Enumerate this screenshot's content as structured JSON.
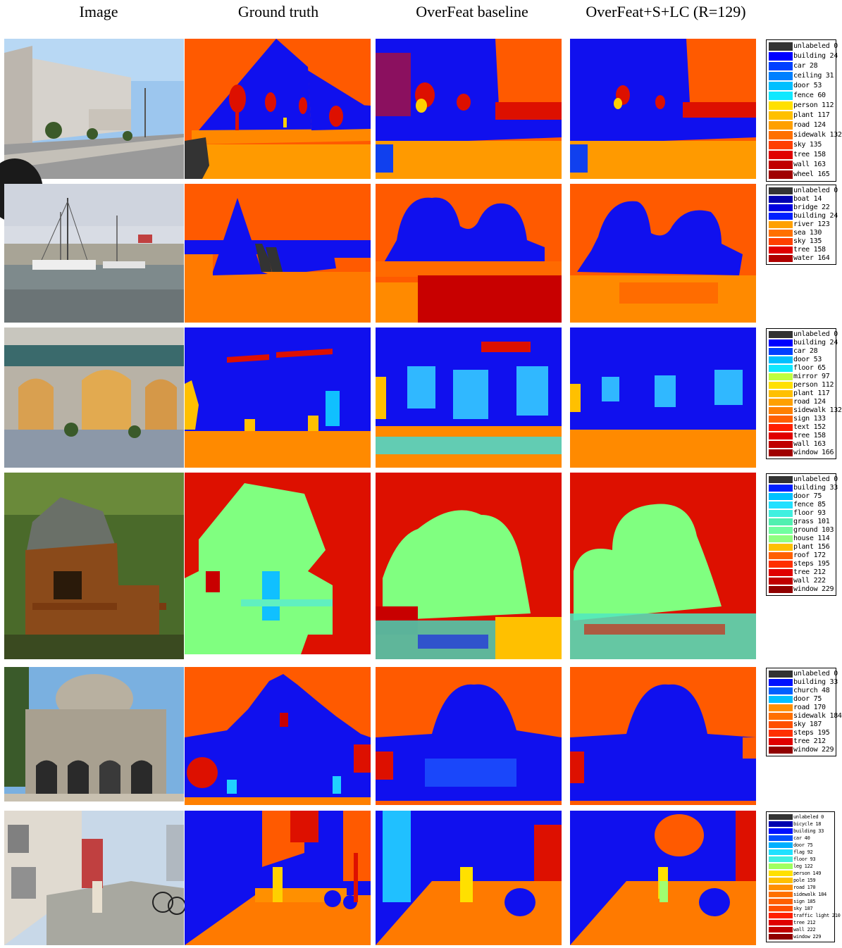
{
  "column_headers": [
    "Image",
    "Ground truth",
    "OverFeat baseline",
    "OverFeat+S+LC (R=129)"
  ],
  "colors": {
    "sky_orange": "#ff5a00",
    "building_blue": "#1010ee",
    "road_orange": "#ff9a00",
    "tree_red": "#dd1000",
    "house_green": "#80ff80",
    "door_cyan": "#10c0ff"
  },
  "legends": [
    {
      "entries": [
        {
          "label": "unlabeled 0",
          "color": "#333333"
        },
        {
          "label": "building 24",
          "color": "#0000ff"
        },
        {
          "label": "car 28",
          "color": "#0040ff"
        },
        {
          "label": "ceiling 31",
          "color": "#0080ff"
        },
        {
          "label": "door 53",
          "color": "#00bfff"
        },
        {
          "label": "fence 60",
          "color": "#10e8ff"
        },
        {
          "label": "person 112",
          "color": "#ffe000"
        },
        {
          "label": "plant 117",
          "color": "#ffc000"
        },
        {
          "label": "road 124",
          "color": "#ffa000"
        },
        {
          "label": "sidewalk 132",
          "color": "#ff7000"
        },
        {
          "label": "sky 135",
          "color": "#ff4000"
        },
        {
          "label": "tree 158",
          "color": "#e00000"
        },
        {
          "label": "wall 163",
          "color": "#c00000"
        },
        {
          "label": "wheel 165",
          "color": "#a00000"
        }
      ]
    },
    {
      "entries": [
        {
          "label": "unlabeled 0",
          "color": "#333333"
        },
        {
          "label": "boat 14",
          "color": "#0000b0"
        },
        {
          "label": "bridge 22",
          "color": "#0000e0"
        },
        {
          "label": "building 24",
          "color": "#0020ff"
        },
        {
          "label": "river 123",
          "color": "#ffa000"
        },
        {
          "label": "sea 130",
          "color": "#ff7000"
        },
        {
          "label": "sky 135",
          "color": "#ff4000"
        },
        {
          "label": "tree 158",
          "color": "#e00000"
        },
        {
          "label": "water 164",
          "color": "#b00000"
        }
      ]
    },
    {
      "entries": [
        {
          "label": "unlabeled 0",
          "color": "#333333"
        },
        {
          "label": "building 24",
          "color": "#0000ff"
        },
        {
          "label": "car 28",
          "color": "#0040ff"
        },
        {
          "label": "door 53",
          "color": "#00c0ff"
        },
        {
          "label": "floor 65",
          "color": "#10e8ff"
        },
        {
          "label": "mirror 97",
          "color": "#c0ff40"
        },
        {
          "label": "person 112",
          "color": "#ffe000"
        },
        {
          "label": "plant 117",
          "color": "#ffc000"
        },
        {
          "label": "road 124",
          "color": "#ffa000"
        },
        {
          "label": "sidewalk 132",
          "color": "#ff8000"
        },
        {
          "label": "sign 133",
          "color": "#ff6000"
        },
        {
          "label": "text 152",
          "color": "#ff2000"
        },
        {
          "label": "tree 158",
          "color": "#e00000"
        },
        {
          "label": "wall 163",
          "color": "#c00000"
        },
        {
          "label": "window 166",
          "color": "#a00000"
        }
      ]
    },
    {
      "entries": [
        {
          "label": "unlabeled 0",
          "color": "#333333"
        },
        {
          "label": "building 33",
          "color": "#0020ff"
        },
        {
          "label": "door 75",
          "color": "#00c0ff"
        },
        {
          "label": "fence 85",
          "color": "#20e0ff"
        },
        {
          "label": "floor 93",
          "color": "#40f0e0"
        },
        {
          "label": "grass 101",
          "color": "#50f0b0"
        },
        {
          "label": "ground 103",
          "color": "#70ffa0"
        },
        {
          "label": "house 114",
          "color": "#90ff80"
        },
        {
          "label": "plant 156",
          "color": "#ffc000"
        },
        {
          "label": "roof 172",
          "color": "#ff6000"
        },
        {
          "label": "steps 195",
          "color": "#ff3000"
        },
        {
          "label": "tree 212",
          "color": "#e00000"
        },
        {
          "label": "wall 222",
          "color": "#c00000"
        },
        {
          "label": "window 229",
          "color": "#900000"
        }
      ]
    },
    {
      "entries": [
        {
          "label": "unlabeled 0",
          "color": "#333333"
        },
        {
          "label": "building 33",
          "color": "#0010ff"
        },
        {
          "label": "church 48",
          "color": "#0060ff"
        },
        {
          "label": "door 75",
          "color": "#00c0ff"
        },
        {
          "label": "road 170",
          "color": "#ff9000"
        },
        {
          "label": "sidewalk 184",
          "color": "#ff7000"
        },
        {
          "label": "sky 187",
          "color": "#ff5000"
        },
        {
          "label": "steps 195",
          "color": "#ff3000"
        },
        {
          "label": "tree 212",
          "color": "#e00000"
        },
        {
          "label": "window 229",
          "color": "#900000"
        }
      ]
    },
    {
      "entries": [
        {
          "label": "unlabeled 0",
          "color": "#333333"
        },
        {
          "label": "bicycle 18",
          "color": "#0000b0"
        },
        {
          "label": "building 33",
          "color": "#0010ff"
        },
        {
          "label": "car 40",
          "color": "#0050ff"
        },
        {
          "label": "door 75",
          "color": "#00b0ff"
        },
        {
          "label": "flag 92",
          "color": "#20e0ff"
        },
        {
          "label": "floor 93",
          "color": "#40f0e0"
        },
        {
          "label": "leg 122",
          "color": "#a0ff60"
        },
        {
          "label": "person 149",
          "color": "#ffe000"
        },
        {
          "label": "pole 159",
          "color": "#ffc000"
        },
        {
          "label": "road 170",
          "color": "#ff9000"
        },
        {
          "label": "sidewalk 184",
          "color": "#ff7000"
        },
        {
          "label": "sign 185",
          "color": "#ff6000"
        },
        {
          "label": "sky 187",
          "color": "#ff5000"
        },
        {
          "label": "traffic light 210",
          "color": "#ff2000"
        },
        {
          "label": "tree 212",
          "color": "#e00000"
        },
        {
          "label": "wall 222",
          "color": "#c00000"
        },
        {
          "label": "window 229",
          "color": "#900000"
        }
      ]
    }
  ]
}
